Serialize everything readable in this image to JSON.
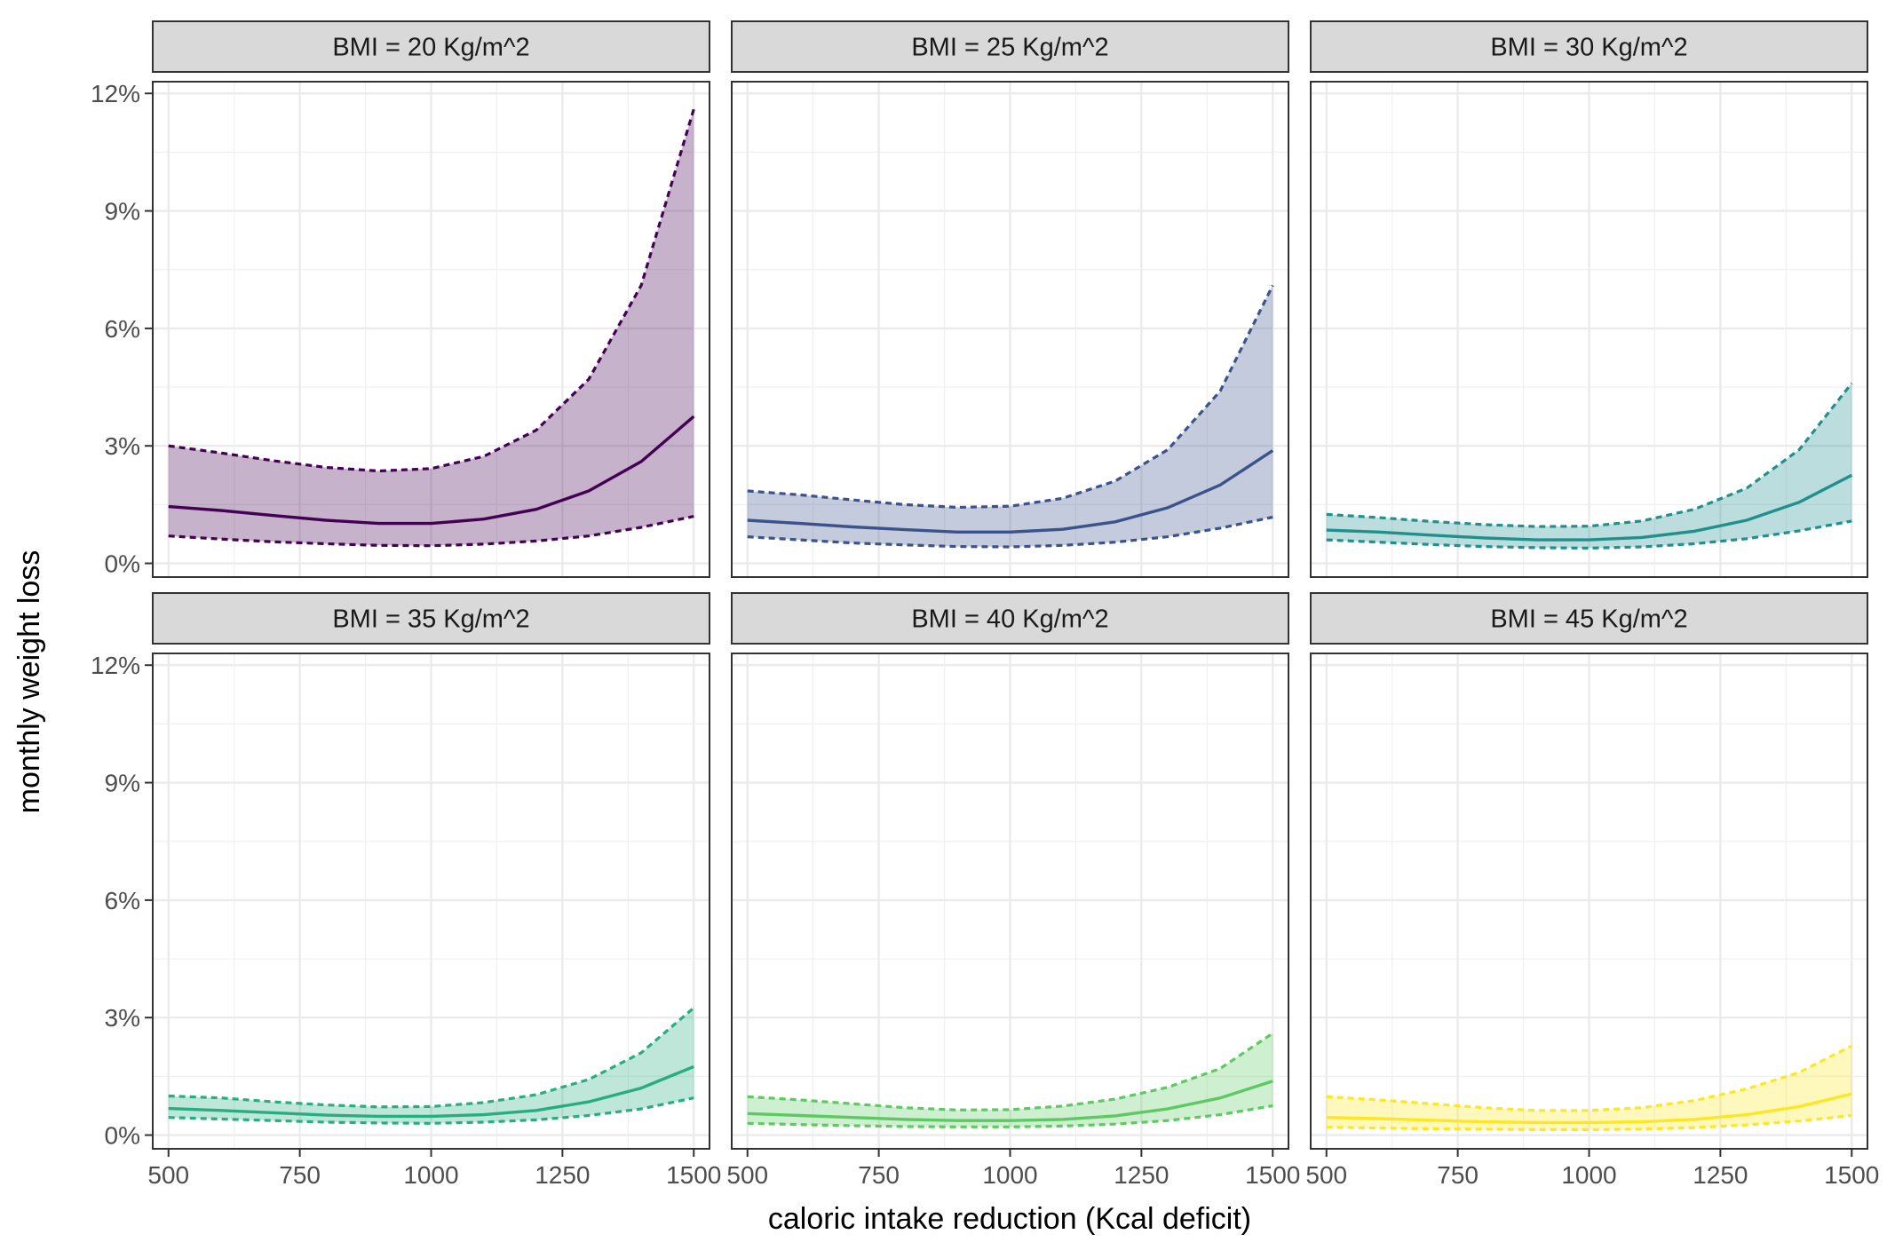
{
  "chart_data": {
    "type": "area",
    "xlabel": "caloric intake reduction (Kcal deficit)",
    "ylabel": "monthly weight loss",
    "x_ticks": [
      500,
      750,
      1000,
      1250,
      1500
    ],
    "x_tick_labels": [
      "500",
      "750",
      "1000",
      "1250",
      "1500"
    ],
    "y_ticks": [
      0,
      3,
      6,
      9,
      12
    ],
    "y_tick_labels": [
      "0%",
      "3%",
      "6%",
      "9%",
      "12%"
    ],
    "xlim": [
      470,
      1530
    ],
    "ylim": [
      -0.35,
      12.3
    ],
    "grid": true,
    "x": [
      500,
      600,
      700,
      800,
      900,
      1000,
      1100,
      1200,
      1300,
      1400,
      1500
    ],
    "panels": [
      {
        "label": "BMI = 20 Kg/m^2",
        "color": "#440154",
        "mean": [
          1.45,
          1.35,
          1.22,
          1.1,
          1.02,
          1.02,
          1.13,
          1.38,
          1.85,
          2.6,
          3.75
        ],
        "lower": [
          0.7,
          0.62,
          0.55,
          0.5,
          0.46,
          0.45,
          0.49,
          0.57,
          0.7,
          0.92,
          1.2
        ],
        "upper": [
          3.0,
          2.82,
          2.62,
          2.45,
          2.36,
          2.42,
          2.73,
          3.4,
          4.7,
          7.1,
          11.6
        ]
      },
      {
        "label": "BMI = 25 Kg/m^2",
        "color": "#3b528b",
        "mean": [
          1.1,
          1.02,
          0.93,
          0.86,
          0.8,
          0.8,
          0.87,
          1.06,
          1.42,
          2.0,
          2.88
        ],
        "lower": [
          0.68,
          0.6,
          0.52,
          0.47,
          0.43,
          0.42,
          0.46,
          0.54,
          0.68,
          0.9,
          1.18
        ],
        "upper": [
          1.85,
          1.75,
          1.62,
          1.5,
          1.43,
          1.46,
          1.66,
          2.1,
          2.9,
          4.4,
          7.1
        ]
      },
      {
        "label": "BMI = 30 Kg/m^2",
        "color": "#21908d",
        "mean": [
          0.85,
          0.8,
          0.72,
          0.65,
          0.6,
          0.6,
          0.66,
          0.82,
          1.1,
          1.56,
          2.25
        ],
        "lower": [
          0.6,
          0.54,
          0.48,
          0.43,
          0.4,
          0.39,
          0.42,
          0.5,
          0.63,
          0.83,
          1.08
        ],
        "upper": [
          1.25,
          1.17,
          1.07,
          0.99,
          0.94,
          0.95,
          1.08,
          1.38,
          1.92,
          2.9,
          4.6
        ]
      },
      {
        "label": "BMI = 35 Kg/m^2",
        "color": "#27ad81",
        "mean": [
          0.68,
          0.63,
          0.57,
          0.51,
          0.48,
          0.48,
          0.52,
          0.63,
          0.85,
          1.2,
          1.75
        ],
        "lower": [
          0.45,
          0.41,
          0.37,
          0.33,
          0.31,
          0.3,
          0.33,
          0.39,
          0.5,
          0.67,
          0.95
        ],
        "upper": [
          1.0,
          0.95,
          0.85,
          0.77,
          0.72,
          0.73,
          0.83,
          1.03,
          1.42,
          2.1,
          3.25
        ]
      },
      {
        "label": "BMI = 40 Kg/m^2",
        "color": "#5ec962",
        "mean": [
          0.55,
          0.5,
          0.45,
          0.4,
          0.37,
          0.37,
          0.4,
          0.49,
          0.67,
          0.95,
          1.38
        ],
        "lower": [
          0.3,
          0.27,
          0.24,
          0.22,
          0.21,
          0.21,
          0.23,
          0.28,
          0.37,
          0.52,
          0.75
        ],
        "upper": [
          0.98,
          0.9,
          0.8,
          0.7,
          0.64,
          0.65,
          0.74,
          0.92,
          1.22,
          1.7,
          2.6
        ]
      },
      {
        "label": "BMI = 45 Kg/m^2",
        "color": "#fde725",
        "mean": [
          0.45,
          0.42,
          0.38,
          0.34,
          0.32,
          0.32,
          0.34,
          0.4,
          0.52,
          0.73,
          1.05
        ],
        "lower": [
          0.2,
          0.18,
          0.16,
          0.15,
          0.14,
          0.14,
          0.15,
          0.19,
          0.26,
          0.36,
          0.5
        ],
        "upper": [
          0.98,
          0.9,
          0.8,
          0.7,
          0.63,
          0.63,
          0.7,
          0.88,
          1.18,
          1.6,
          2.28
        ]
      }
    ]
  }
}
